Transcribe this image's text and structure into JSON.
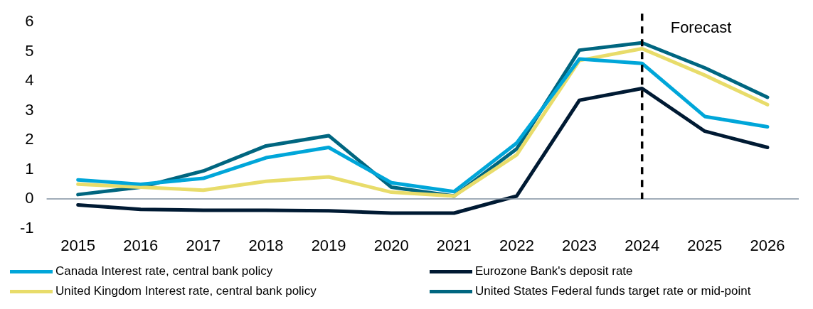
{
  "chart_data": {
    "type": "line",
    "categories": [
      "2015",
      "2016",
      "2017",
      "2018",
      "2019",
      "2020",
      "2021",
      "2022",
      "2023",
      "2024",
      "2025",
      "2026"
    ],
    "series": [
      {
        "name": "Canada Interest rate, central bank policy",
        "color": "#00a6d9",
        "values": [
          0.65,
          0.5,
          0.7,
          1.4,
          1.75,
          0.55,
          0.25,
          1.9,
          4.75,
          4.6,
          2.8,
          2.45
        ]
      },
      {
        "name": "Eurozone Bank's deposit rate",
        "color": "#001a33",
        "values": [
          -0.2,
          -0.35,
          -0.38,
          -0.38,
          -0.4,
          -0.48,
          -0.48,
          0.1,
          3.35,
          3.75,
          2.3,
          1.75
        ]
      },
      {
        "name": "United Kingdom Interest rate, central bank policy",
        "color": "#e8dc6a",
        "values": [
          0.5,
          0.4,
          0.3,
          0.6,
          0.75,
          0.23,
          0.1,
          1.5,
          4.7,
          5.1,
          4.2,
          3.2
        ]
      },
      {
        "name": "United States Federal funds target rate or mid-point",
        "color": "#006680",
        "values": [
          0.15,
          0.4,
          0.95,
          1.8,
          2.15,
          0.4,
          0.1,
          1.7,
          5.05,
          5.3,
          4.45,
          3.45
        ]
      }
    ],
    "ylim": [
      -1,
      6
    ],
    "yticks": [
      -1,
      0,
      1,
      2,
      3,
      4,
      5,
      6
    ],
    "ref_lines": [
      {
        "axis": "x",
        "value": "2024",
        "label": "Forecast",
        "color": "#000000",
        "line_style": "dashed"
      }
    ],
    "grid": false,
    "legend": "bottom",
    "marker": "none",
    "line_style": "solid"
  }
}
